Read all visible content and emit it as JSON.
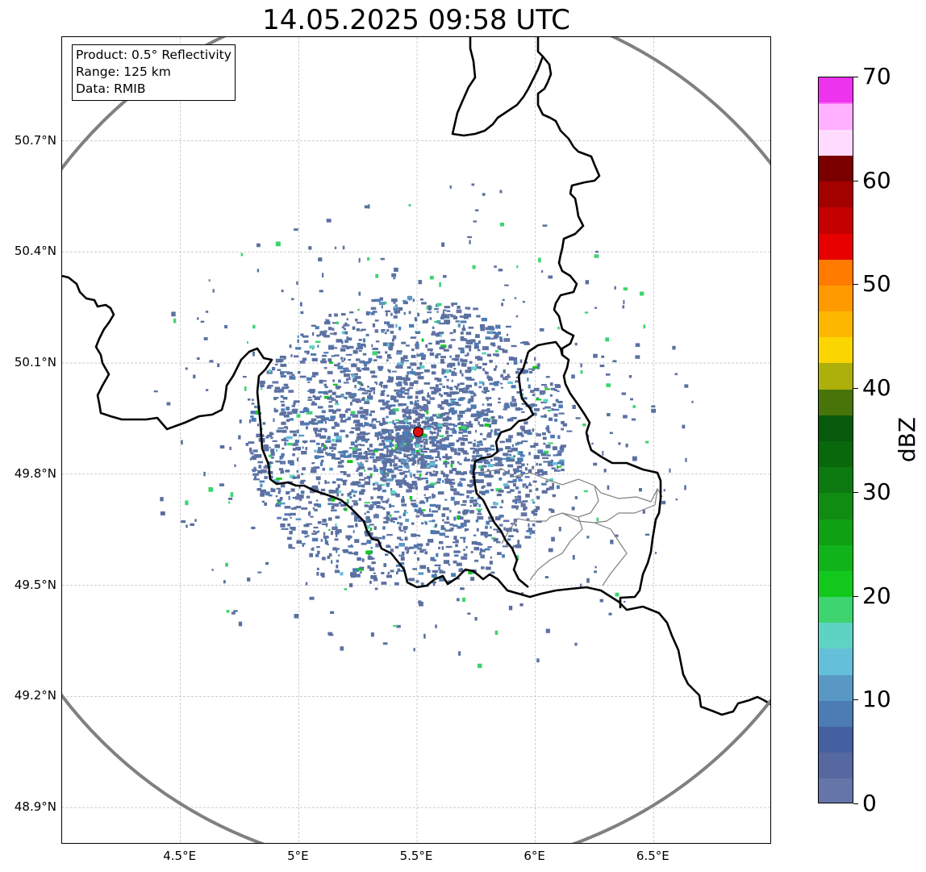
{
  "title": "14.05.2025 09:58 UTC",
  "info_box": {
    "product": "Product: 0.5° Reflectivity",
    "range": "Range: 125 km",
    "data": "Data: RMIB"
  },
  "map": {
    "extent": {
      "lon_min": 4.0,
      "lon_max": 7.0,
      "lat_min": 48.8,
      "lat_max": 50.98
    },
    "radar_site": {
      "lon": 5.505,
      "lat": 49.914
    },
    "range_ring_km": 125,
    "lat_ticks": [
      {
        "value": 50.7,
        "label": "50.7°N"
      },
      {
        "value": 50.4,
        "label": "50.4°N"
      },
      {
        "value": 50.1,
        "label": "50.1°N"
      },
      {
        "value": 49.8,
        "label": "49.8°N"
      },
      {
        "value": 49.5,
        "label": "49.5°N"
      },
      {
        "value": 49.2,
        "label": "49.2°N"
      },
      {
        "value": 48.9,
        "label": "48.9°N"
      }
    ],
    "lon_ticks": [
      {
        "value": 4.5,
        "label": "4.5°E"
      },
      {
        "value": 5.0,
        "label": "5°E"
      },
      {
        "value": 5.5,
        "label": "5.5°E"
      },
      {
        "value": 6.0,
        "label": "6°E"
      },
      {
        "value": 6.5,
        "label": "6.5°E"
      }
    ],
    "colors": {
      "border": "#000000",
      "admin_border": "#808080",
      "range_ring": "#808080",
      "grid": "#b0b0b0",
      "radar_marker": "#e01010",
      "echo_dominant": "#5a70a0"
    }
  },
  "colorbar": {
    "label": "dBZ",
    "min": 0,
    "max": 70,
    "tick_values": [
      0,
      10,
      20,
      30,
      40,
      50,
      60,
      70
    ],
    "tick_labels": [
      "0",
      "10",
      "20",
      "30",
      "40",
      "50",
      "60",
      "70"
    ],
    "segments": [
      {
        "from": 0,
        "to": 2.5,
        "color": "#6675a8"
      },
      {
        "from": 2.5,
        "to": 5,
        "color": "#55689f"
      },
      {
        "from": 5,
        "to": 7.5,
        "color": "#4560a0"
      },
      {
        "from": 7.5,
        "to": 10,
        "color": "#4d7bb3"
      },
      {
        "from": 10,
        "to": 12.5,
        "color": "#5998c4"
      },
      {
        "from": 12.5,
        "to": 15,
        "color": "#64bfd8"
      },
      {
        "from": 15,
        "to": 17.5,
        "color": "#5fd3c3"
      },
      {
        "from": 17.5,
        "to": 20,
        "color": "#3ed46f"
      },
      {
        "from": 20,
        "to": 22.5,
        "color": "#12c81c"
      },
      {
        "from": 22.5,
        "to": 25,
        "color": "#10b41a"
      },
      {
        "from": 25,
        "to": 27.5,
        "color": "#10a014"
      },
      {
        "from": 27.5,
        "to": 30,
        "color": "#108c12"
      },
      {
        "from": 30,
        "to": 32.5,
        "color": "#0c7a10"
      },
      {
        "from": 32.5,
        "to": 35,
        "color": "#0a680c"
      },
      {
        "from": 35,
        "to": 37.5,
        "color": "#075a0b"
      },
      {
        "from": 37.5,
        "to": 40,
        "color": "#47750a"
      },
      {
        "from": 40,
        "to": 42.5,
        "color": "#adb00a"
      },
      {
        "from": 42.5,
        "to": 45,
        "color": "#fbd500"
      },
      {
        "from": 45,
        "to": 47.5,
        "color": "#fdb700"
      },
      {
        "from": 47.5,
        "to": 50,
        "color": "#ff9900"
      },
      {
        "from": 50,
        "to": 52.5,
        "color": "#ff7b00"
      },
      {
        "from": 52.5,
        "to": 55,
        "color": "#e60000"
      },
      {
        "from": 55,
        "to": 57.5,
        "color": "#c40000"
      },
      {
        "from": 57.5,
        "to": 60,
        "color": "#a30000"
      },
      {
        "from": 60,
        "to": 62.5,
        "color": "#7a0000"
      },
      {
        "from": 62.5,
        "to": 65,
        "color": "#ffdcff"
      },
      {
        "from": 65,
        "to": 67.5,
        "color": "#ffb0ff"
      },
      {
        "from": 67.5,
        "to": 70,
        "color": "#ff6cf8"
      }
    ],
    "top_color": "#ee33ee"
  }
}
